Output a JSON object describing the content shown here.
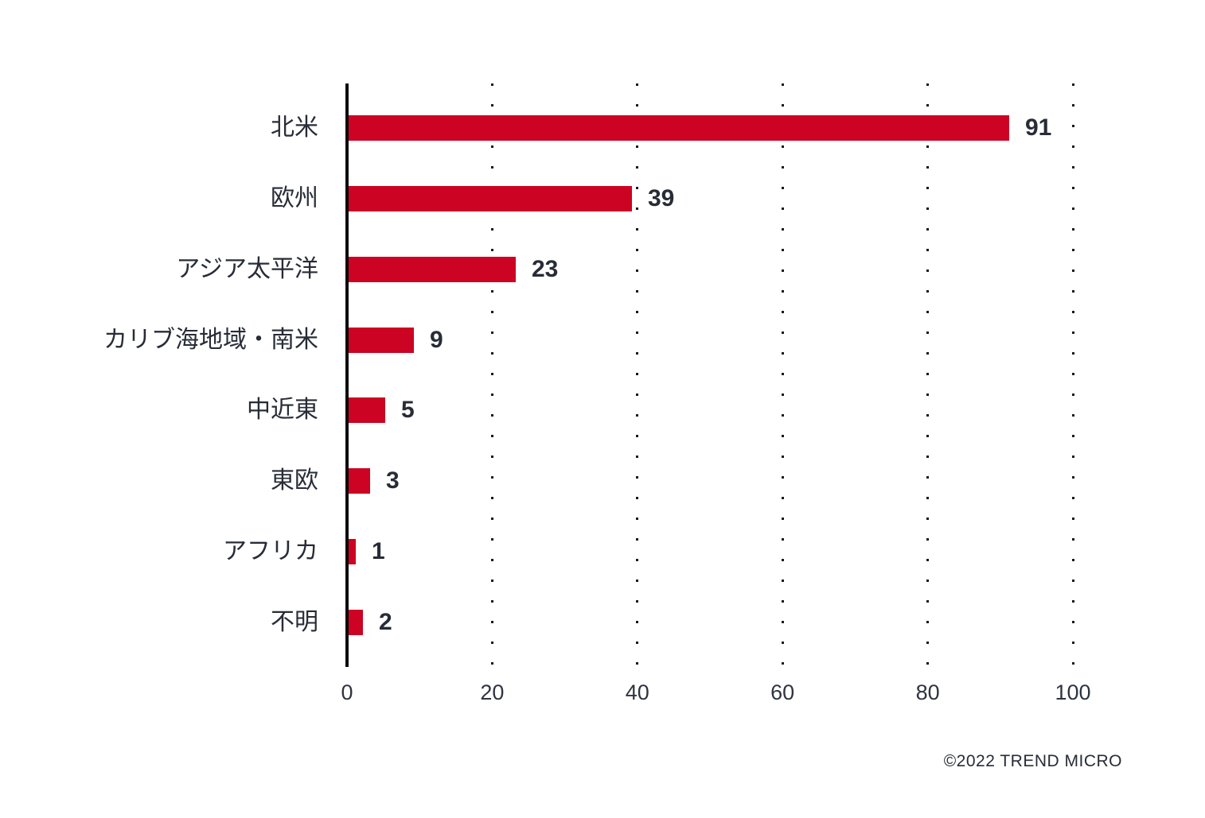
{
  "chart_data": {
    "type": "bar",
    "orientation": "horizontal",
    "categories": [
      "北米",
      "欧州",
      "アジア太平洋",
      "カリブ海地域・南米",
      "中近東",
      "東欧",
      "アフリカ",
      "不明"
    ],
    "values": [
      91,
      39,
      23,
      9,
      5,
      3,
      1,
      2
    ],
    "xlim": [
      0,
      100
    ],
    "x_ticks": [
      0,
      20,
      40,
      60,
      80,
      100
    ],
    "grid": "vertical-dotted",
    "legend": "none",
    "bar_color": "#cc0322",
    "axis_color": "#0b0b0b",
    "text_color": "#272c36"
  },
  "footer": {
    "copyright": "©2022 TREND MICRO"
  }
}
